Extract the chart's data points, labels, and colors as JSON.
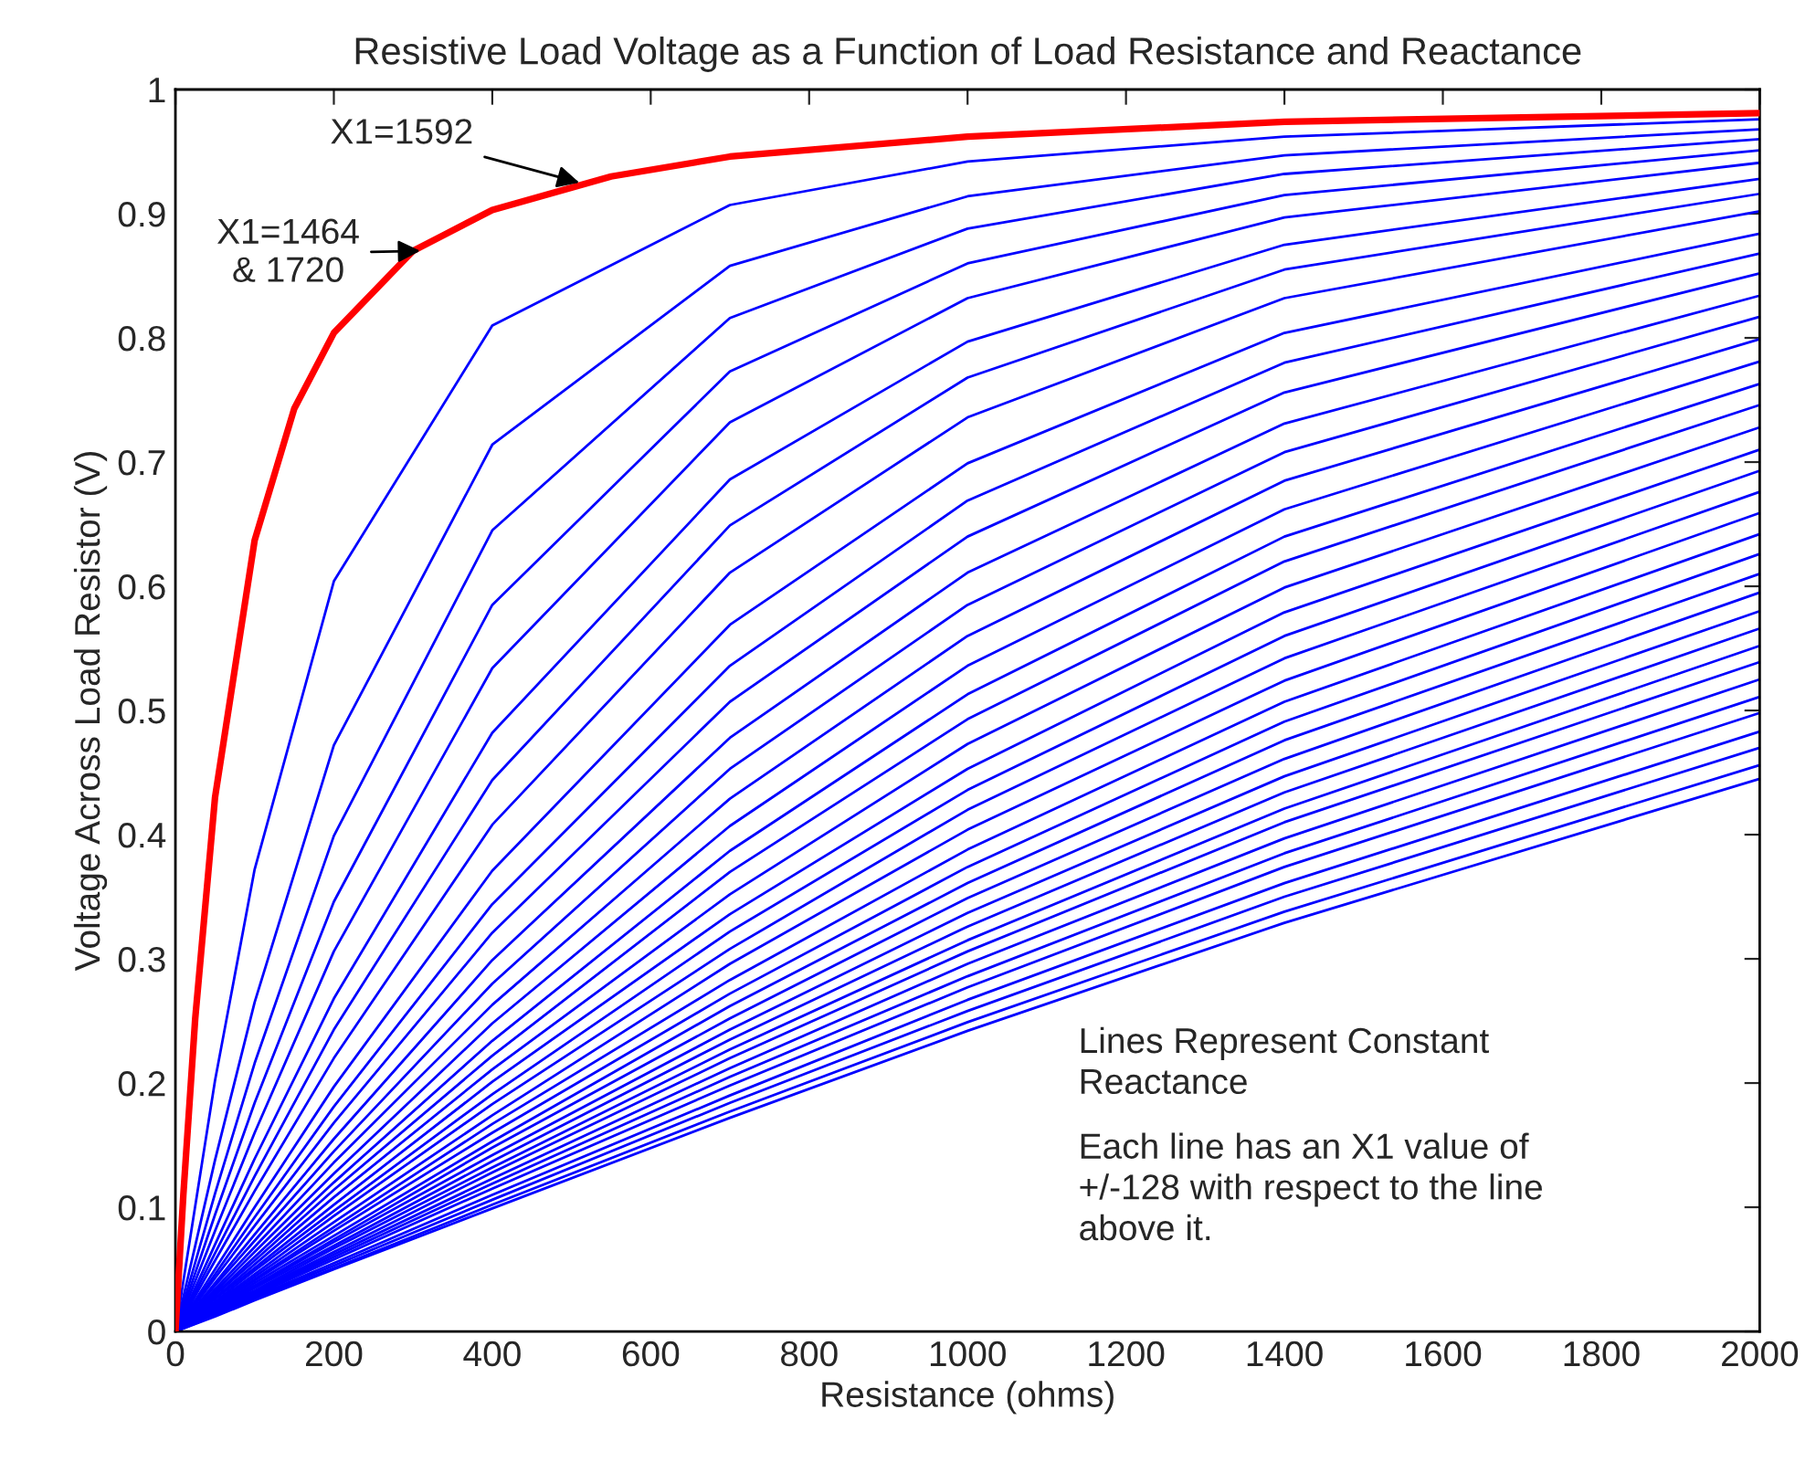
{
  "chart_data": {
    "type": "line",
    "title": "Resistive Load Voltage as a Function of Load Resistance and Reactance",
    "xlabel": "Resistance (ohms)",
    "ylabel": "Voltage Across Load Resistor (V)",
    "xlim": [
      0,
      2000
    ],
    "xticks": [
      0,
      200,
      400,
      600,
      800,
      1000,
      1200,
      1400,
      1600,
      1800,
      2000
    ],
    "ylim": [
      0,
      1
    ],
    "yticks": [
      0,
      0.1,
      0.2,
      0.3,
      0.4,
      0.5,
      0.6,
      0.7,
      0.8,
      0.9,
      1
    ],
    "grid": false,
    "legend": false,
    "marker": "none",
    "line_style": "solid",
    "annotations": [
      {
        "text": "X1=1592",
        "x": 510,
        "y": 0.925
      },
      {
        "text": "X1=1464\n& 1720",
        "x": 309,
        "y": 0.87
      },
      "Lines Represent Constant\nReactance",
      "Each line has an X1 value of\n+/-128 with respect to the line\nabove it."
    ],
    "x": [
      0,
      50,
      100,
      200,
      400,
      700,
      1000,
      1400,
      2000
    ],
    "series": [
      {
        "color": "#ff0000",
        "x": [
          0,
          10,
          25,
          50,
          100,
          150,
          200,
          300,
          400,
          550,
          700,
          1000,
          1400,
          2000
        ],
        "values": [
          0,
          0.11,
          0.252,
          0.43,
          0.637,
          0.743,
          0.804,
          0.87,
          0.903,
          0.93,
          0.946,
          0.962,
          0.974,
          0.981
        ]
      },
      {
        "color": "#0000ff",
        "values": [
          0,
          0.202,
          0.372,
          0.604,
          0.81,
          0.907,
          0.942,
          0.962,
          0.976
        ]
      },
      {
        "color": "#0000ff",
        "values": [
          0,
          0.138,
          0.265,
          0.472,
          0.714,
          0.858,
          0.914,
          0.947,
          0.968
        ]
      },
      {
        "color": "#0000ff",
        "values": [
          0,
          0.111,
          0.216,
          0.399,
          0.645,
          0.816,
          0.888,
          0.932,
          0.96
        ]
      },
      {
        "color": "#0000ff",
        "values": [
          0,
          0.094,
          0.184,
          0.346,
          0.585,
          0.773,
          0.86,
          0.915,
          0.951
        ]
      },
      {
        "color": "#0000ff",
        "values": [
          0,
          0.081,
          0.16,
          0.306,
          0.534,
          0.732,
          0.832,
          0.897,
          0.941
        ]
      },
      {
        "color": "#0000ff",
        "values": [
          0,
          0.07,
          0.139,
          0.268,
          0.482,
          0.686,
          0.797,
          0.875,
          0.928
        ]
      },
      {
        "color": "#0000ff",
        "values": [
          0,
          0.063,
          0.125,
          0.243,
          0.444,
          0.649,
          0.768,
          0.855,
          0.916
        ]
      },
      {
        "color": "#0000ff",
        "values": [
          0,
          0.057,
          0.113,
          0.22,
          0.408,
          0.611,
          0.736,
          0.832,
          0.902
        ]
      },
      {
        "color": "#0000ff",
        "values": [
          0,
          0.05,
          0.1,
          0.197,
          0.371,
          0.569,
          0.699,
          0.804,
          0.884
        ]
      },
      {
        "color": "#0000ff",
        "values": [
          0,
          0.046,
          0.092,
          0.181,
          0.344,
          0.536,
          0.669,
          0.78,
          0.868
        ]
      },
      {
        "color": "#0000ff",
        "values": [
          0,
          0.043,
          0.085,
          0.168,
          0.321,
          0.507,
          0.64,
          0.756,
          0.852
        ]
      },
      {
        "color": "#0000ff",
        "values": [
          0,
          0.039,
          0.078,
          0.155,
          0.299,
          0.478,
          0.611,
          0.731,
          0.834
        ]
      },
      {
        "color": "#0000ff",
        "values": [
          0,
          0.037,
          0.073,
          0.145,
          0.28,
          0.453,
          0.585,
          0.708,
          0.817
        ]
      },
      {
        "color": "#0000ff",
        "values": [
          0,
          0.034,
          0.068,
          0.136,
          0.263,
          0.429,
          0.56,
          0.685,
          0.799
        ]
      },
      {
        "color": "#0000ff",
        "values": [
          0,
          0.032,
          0.064,
          0.127,
          0.248,
          0.407,
          0.536,
          0.662,
          0.781
        ]
      },
      {
        "color": "#0000ff",
        "values": [
          0,
          0.03,
          0.06,
          0.12,
          0.234,
          0.387,
          0.513,
          0.64,
          0.763
        ]
      },
      {
        "color": "#0000ff",
        "values": [
          0,
          0.029,
          0.057,
          0.114,
          0.222,
          0.37,
          0.493,
          0.62,
          0.746
        ]
      },
      {
        "color": "#0000ff",
        "values": [
          0,
          0.027,
          0.054,
          0.108,
          0.211,
          0.352,
          0.473,
          0.599,
          0.728
        ]
      },
      {
        "color": "#0000ff",
        "values": [
          0,
          0.026,
          0.051,
          0.102,
          0.201,
          0.336,
          0.453,
          0.579,
          0.71
        ]
      },
      {
        "color": "#0000ff",
        "values": [
          0,
          0.024,
          0.049,
          0.097,
          0.191,
          0.322,
          0.436,
          0.56,
          0.693
        ]
      },
      {
        "color": "#0000ff",
        "values": [
          0,
          0.023,
          0.046,
          0.093,
          0.183,
          0.308,
          0.42,
          0.542,
          0.676
        ]
      },
      {
        "color": "#0000ff",
        "values": [
          0,
          0.022,
          0.044,
          0.088,
          0.174,
          0.296,
          0.404,
          0.524,
          0.659
        ]
      },
      {
        "color": "#0000ff",
        "values": [
          0,
          0.021,
          0.042,
          0.084,
          0.167,
          0.283,
          0.388,
          0.507,
          0.642
        ]
      },
      {
        "color": "#0000ff",
        "values": [
          0,
          0.02,
          0.041,
          0.081,
          0.16,
          0.272,
          0.374,
          0.491,
          0.626
        ]
      },
      {
        "color": "#0000ff",
        "values": [
          0,
          0.019,
          0.039,
          0.077,
          0.153,
          0.262,
          0.361,
          0.476,
          0.61
        ]
      },
      {
        "color": "#0000ff",
        "values": [
          0,
          0.019,
          0.037,
          0.074,
          0.148,
          0.252,
          0.349,
          0.461,
          0.595
        ]
      },
      {
        "color": "#0000ff",
        "values": [
          0,
          0.018,
          0.036,
          0.072,
          0.142,
          0.243,
          0.337,
          0.447,
          0.58
        ]
      },
      {
        "color": "#0000ff",
        "values": [
          0,
          0.017,
          0.035,
          0.069,
          0.137,
          0.235,
          0.326,
          0.434,
          0.566
        ]
      },
      {
        "color": "#0000ff",
        "values": [
          0,
          0.017,
          0.033,
          0.067,
          0.132,
          0.227,
          0.315,
          0.421,
          0.552
        ]
      },
      {
        "color": "#0000ff",
        "values": [
          0,
          0.016,
          0.032,
          0.064,
          0.128,
          0.22,
          0.306,
          0.41,
          0.539
        ]
      },
      {
        "color": "#0000ff",
        "values": [
          0,
          0.016,
          0.031,
          0.062,
          0.123,
          0.212,
          0.296,
          0.397,
          0.525
        ]
      },
      {
        "color": "#0000ff",
        "values": [
          0,
          0.015,
          0.03,
          0.06,
          0.119,
          0.205,
          0.286,
          0.385,
          0.511
        ]
      },
      {
        "color": "#0000ff",
        "values": [
          0,
          0.014,
          0.029,
          0.058,
          0.115,
          0.198,
          0.277,
          0.374,
          0.498
        ]
      },
      {
        "color": "#0000ff",
        "values": [
          0,
          0.014,
          0.028,
          0.055,
          0.11,
          0.19,
          0.267,
          0.361,
          0.483
        ]
      },
      {
        "color": "#0000ff",
        "values": [
          0,
          0.013,
          0.027,
          0.053,
          0.106,
          0.184,
          0.258,
          0.35,
          0.47
        ]
      },
      {
        "color": "#0000ff",
        "values": [
          0,
          0.013,
          0.026,
          0.051,
          0.102,
          0.177,
          0.249,
          0.338,
          0.456
        ]
      },
      {
        "color": "#0000ff",
        "values": [
          0,
          0.012,
          0.025,
          0.05,
          0.099,
          0.172,
          0.242,
          0.329,
          0.445
        ]
      }
    ]
  }
}
